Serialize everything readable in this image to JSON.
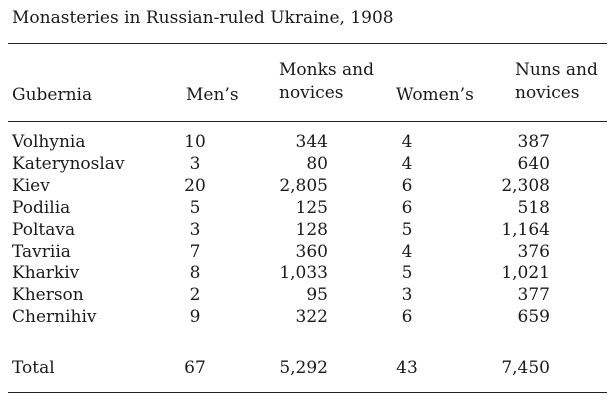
{
  "title": "Monasteries in Russian-ruled Ukraine, 1908",
  "headers": {
    "gubernia": "Gubernia",
    "mens": "Men’s",
    "monks_line1": "Monks and",
    "monks_line2": "novices",
    "womens": "Women’s",
    "nuns_line1": "Nuns and",
    "nuns_line2": "novices"
  },
  "rows": [
    {
      "gubernia": "Volhynia",
      "mens": "10",
      "monks": "344",
      "womens": "4",
      "nuns": "387"
    },
    {
      "gubernia": "Katerynoslav",
      "mens": "3",
      "monks": "80",
      "womens": "4",
      "nuns": "640"
    },
    {
      "gubernia": "Kiev",
      "mens": "20",
      "monks": "2,805",
      "womens": "6",
      "nuns": "2,308"
    },
    {
      "gubernia": "Podilia",
      "mens": "5",
      "monks": "125",
      "womens": "6",
      "nuns": "518"
    },
    {
      "gubernia": "Poltava",
      "mens": "3",
      "monks": "128",
      "womens": "5",
      "nuns": "1,164"
    },
    {
      "gubernia": "Tavriia",
      "mens": "7",
      "monks": "360",
      "womens": "4",
      "nuns": "376"
    },
    {
      "gubernia": "Kharkiv",
      "mens": "8",
      "monks": "1,033",
      "womens": "5",
      "nuns": "1,021"
    },
    {
      "gubernia": "Kherson",
      "mens": "2",
      "monks": "95",
      "womens": "3",
      "nuns": "377"
    },
    {
      "gubernia": "Chernihiv",
      "mens": "9",
      "monks": "322",
      "womens": "6",
      "nuns": "659"
    }
  ],
  "total": {
    "gubernia": "Total",
    "mens": "67",
    "monks": "5,292",
    "womens": "43",
    "nuns": "7,450"
  }
}
